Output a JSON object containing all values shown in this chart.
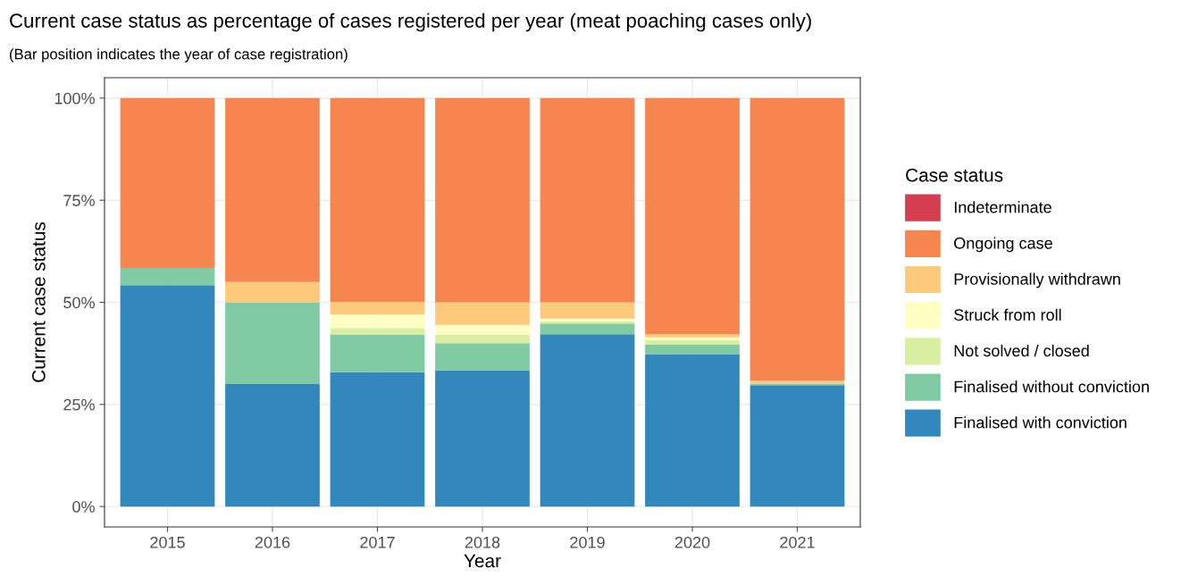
{
  "chart_data": {
    "type": "bar",
    "stacked": true,
    "title": "Current case status as percentage of cases registered per year (meat poaching cases only)",
    "subtitle": "(Bar position indicates the year of case registration)",
    "xlabel": "Year",
    "ylabel": "Current case status",
    "legend_title": "Case status",
    "categories": [
      "2015",
      "2016",
      "2017",
      "2018",
      "2019",
      "2020",
      "2021"
    ],
    "series": [
      {
        "name": "Finalised with conviction",
        "color": "#3288bd",
        "values": [
          54.2,
          30,
          32.9,
          33.3,
          42.2,
          37.3,
          29.7
        ]
      },
      {
        "name": "Finalised without conviction",
        "color": "#80cba3",
        "values": [
          4.2,
          20,
          9.2,
          6.7,
          2.6,
          2.3,
          0.4
        ]
      },
      {
        "name": "Not solved / closed",
        "color": "#d8eea0",
        "values": [
          0,
          0,
          1.6,
          2.0,
          0.6,
          1.1,
          0
        ]
      },
      {
        "name": "Struck from roll",
        "color": "#ffffc4",
        "values": [
          0,
          0,
          3.3,
          2.5,
          0.6,
          0.7,
          0
        ]
      },
      {
        "name": "Provisionally withdrawn",
        "color": "#fdca7c",
        "values": [
          0,
          5,
          3.1,
          5.5,
          4.0,
          0.8,
          0.7
        ]
      },
      {
        "name": "Ongoing case",
        "color": "#f78550",
        "values": [
          41.6,
          45,
          49.9,
          50,
          50,
          57.8,
          69.2
        ]
      },
      {
        "name": "Indeterminate",
        "color": "#d53e4f",
        "values": [
          0,
          0,
          0,
          0,
          0,
          0,
          0
        ]
      }
    ],
    "ylim": [
      -5,
      105
    ],
    "yticks": [
      {
        "value": 0,
        "label": "0%"
      },
      {
        "value": 25,
        "label": "25%"
      },
      {
        "value": 50,
        "label": "50%"
      },
      {
        "value": 75,
        "label": "75%"
      },
      {
        "value": 100,
        "label": "100%"
      }
    ],
    "grid": true,
    "legend": "right"
  }
}
